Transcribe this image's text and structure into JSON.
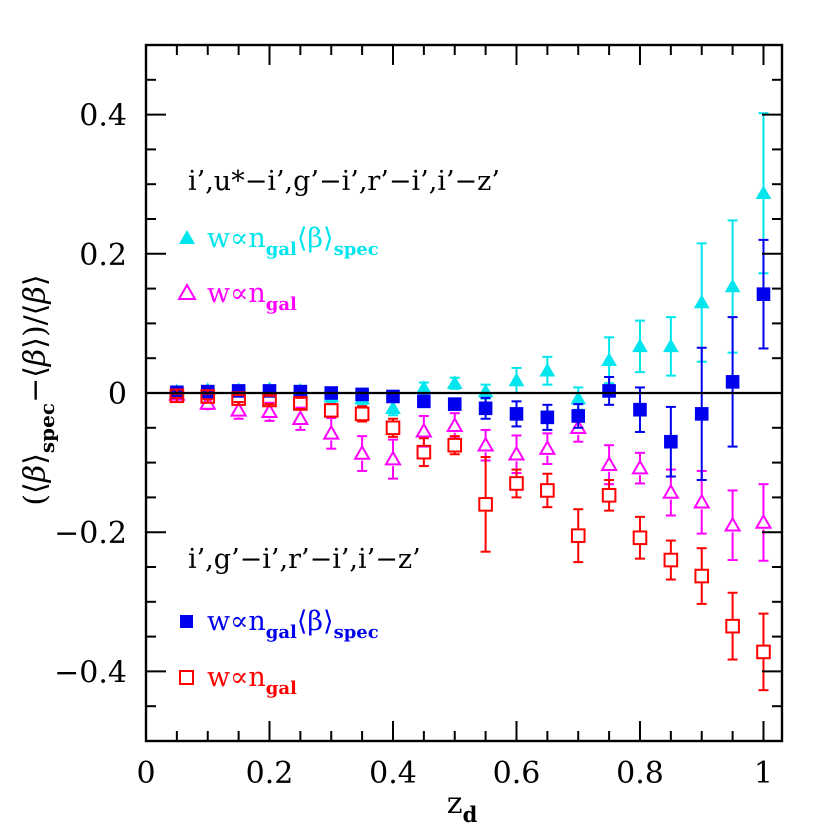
{
  "chart_data": {
    "type": "scatter",
    "xlabel_main": "z",
    "xlabel_sub": "d",
    "ylabel": "(⟨β⟩spec−⟨β⟩)/⟨β⟩",
    "xlim": [
      0,
      1.03
    ],
    "ylim": [
      -0.5,
      0.5
    ],
    "x_ticks": [
      0,
      0.2,
      0.4,
      0.6,
      0.8,
      1
    ],
    "x_tick_labels": [
      "0",
      "0.2",
      "0.4",
      "0.6",
      "0.8",
      "1"
    ],
    "y_ticks": [
      -0.4,
      -0.2,
      0,
      0.2,
      0.4
    ],
    "y_tick_labels": [
      "−0.4",
      "−0.2",
      "0",
      "0.2",
      "0.4"
    ],
    "reference_line_y": 0,
    "group_labels": {
      "upper": "i’,u*−i’,g’−i’,r’−i’,i’−z’",
      "lower": "i’,g’−i’,r’−i’,i’−z’"
    },
    "legend_text": {
      "w": "w∝n",
      "gal": "gal",
      "beta": "⟨β⟩",
      "spec": "spec"
    },
    "series": [
      {
        "name": "w∝n_gal⟨β⟩_spec",
        "group": "upper",
        "marker": "filled-triangle",
        "color": "#00e5ee",
        "x": [
          0.05,
          0.1,
          0.15,
          0.2,
          0.25,
          0.3,
          0.35,
          0.4,
          0.45,
          0.5,
          0.55,
          0.6,
          0.65,
          0.7,
          0.75,
          0.8,
          0.85,
          0.9,
          0.95,
          1.0
        ],
        "y": [
          0.002,
          0.004,
          0.004,
          0.005,
          0.003,
          -0.005,
          -0.008,
          -0.022,
          0.007,
          0.014,
          0.002,
          0.018,
          0.032,
          -0.008,
          0.047,
          0.067,
          0.067,
          0.13,
          0.153,
          0.287
        ],
        "err": [
          0.004,
          0.004,
          0.005,
          0.005,
          0.005,
          0.008,
          0.01,
          0.01,
          0.008,
          0.008,
          0.01,
          0.018,
          0.02,
          0.016,
          0.033,
          0.037,
          0.042,
          0.085,
          0.095,
          0.115
        ]
      },
      {
        "name": "w∝n_gal",
        "group": "upper",
        "marker": "open-triangle",
        "color": "#ff00ff",
        "x": [
          0.05,
          0.1,
          0.15,
          0.2,
          0.25,
          0.3,
          0.35,
          0.4,
          0.45,
          0.5,
          0.55,
          0.6,
          0.65,
          0.7,
          0.75,
          0.8,
          0.85,
          0.9,
          0.95,
          1.0
        ],
        "y": [
          -0.002,
          -0.015,
          -0.025,
          -0.027,
          -0.037,
          -0.058,
          -0.087,
          -0.095,
          -0.055,
          -0.047,
          -0.075,
          -0.088,
          -0.08,
          -0.05,
          -0.103,
          -0.108,
          -0.143,
          -0.157,
          -0.19,
          -0.186
        ],
        "err": [
          0.004,
          0.008,
          0.012,
          0.013,
          0.016,
          0.022,
          0.025,
          0.028,
          0.022,
          0.018,
          0.022,
          0.027,
          0.022,
          0.02,
          0.028,
          0.022,
          0.033,
          0.045,
          0.05,
          0.055
        ]
      },
      {
        "name": "w∝n_gal⟨β⟩_spec",
        "group": "lower",
        "marker": "filled-square",
        "color": "#0000ee",
        "x": [
          0.05,
          0.1,
          0.15,
          0.2,
          0.25,
          0.3,
          0.35,
          0.4,
          0.45,
          0.5,
          0.55,
          0.6,
          0.65,
          0.7,
          0.75,
          0.8,
          0.85,
          0.9,
          0.95,
          1.0
        ],
        "y": [
          0.001,
          0.002,
          0.003,
          0.003,
          0.002,
          0.0,
          -0.002,
          -0.005,
          -0.012,
          -0.016,
          -0.022,
          -0.03,
          -0.035,
          -0.033,
          0.003,
          -0.024,
          -0.07,
          -0.03,
          0.016,
          0.142
        ],
        "err": [
          0.003,
          0.003,
          0.004,
          0.004,
          0.004,
          0.004,
          0.005,
          0.006,
          0.006,
          0.008,
          0.015,
          0.018,
          0.018,
          0.017,
          0.02,
          0.032,
          0.05,
          0.095,
          0.093,
          0.078
        ]
      },
      {
        "name": "w∝n_gal",
        "group": "lower",
        "marker": "open-square",
        "color": "#ff0000",
        "x": [
          0.05,
          0.1,
          0.15,
          0.2,
          0.25,
          0.3,
          0.35,
          0.4,
          0.45,
          0.5,
          0.55,
          0.6,
          0.65,
          0.7,
          0.75,
          0.8,
          0.85,
          0.9,
          0.95,
          1.0
        ],
        "y": [
          -0.004,
          -0.005,
          -0.008,
          -0.01,
          -0.015,
          -0.025,
          -0.03,
          -0.05,
          -0.085,
          -0.075,
          -0.16,
          -0.13,
          -0.14,
          -0.205,
          -0.147,
          -0.208,
          -0.24,
          -0.263,
          -0.335,
          -0.372
        ],
        "err": [
          0.003,
          0.004,
          0.005,
          0.006,
          0.008,
          0.009,
          0.011,
          0.013,
          0.02,
          0.013,
          0.068,
          0.02,
          0.024,
          0.038,
          0.022,
          0.03,
          0.028,
          0.04,
          0.048,
          0.055
        ]
      }
    ]
  }
}
